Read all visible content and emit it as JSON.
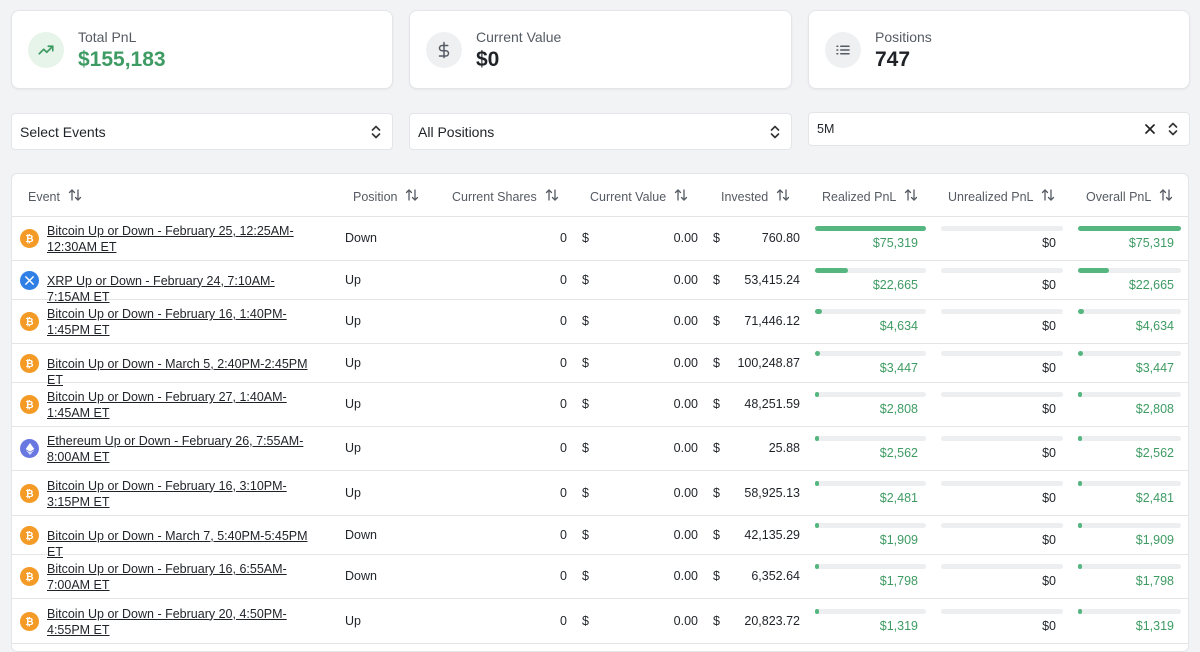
{
  "stats": {
    "total_pnl_label": "Total PnL",
    "total_pnl_value": "$155,183",
    "current_value_label": "Current Value",
    "current_value_value": "$0",
    "positions_label": "Positions",
    "positions_value": "747"
  },
  "filters": {
    "events_select": "Select Events",
    "positions_select": "All Positions",
    "amount_select": "5M"
  },
  "table": {
    "headers": {
      "event": "Event",
      "position": "Position",
      "current_shares": "Current Shares",
      "current_value": "Current Value",
      "invested": "Invested",
      "realized_pnl": "Realized PnL",
      "unrealized_pnl": "Unrealized PnL",
      "overall_pnl": "Overall PnL"
    },
    "currency_symbol": "$",
    "rows": [
      {
        "coin": "bitcoin",
        "event": "Bitcoin Up or Down - February 25, 12:25AM-12:30AM ET",
        "position": "Down",
        "shares": "0",
        "value": "0.00",
        "invested": "760.80",
        "realized": "$75,319",
        "unrealized": "$0",
        "overall": "$75,319",
        "fill": 1.0
      },
      {
        "coin": "xrp",
        "event": "XRP Up or Down - February 24, 7:10AM-7:15AM ET",
        "position": "Up",
        "shares": "0",
        "value": "0.00",
        "invested": "53,415.24",
        "realized": "$22,665",
        "unrealized": "$0",
        "overall": "$22,665",
        "fill": 0.3
      },
      {
        "coin": "bitcoin",
        "event": "Bitcoin Up or Down - February 16, 1:40PM-1:45PM ET",
        "position": "Up",
        "shares": "0",
        "value": "0.00",
        "invested": "71,446.12",
        "realized": "$4,634",
        "unrealized": "$0",
        "overall": "$4,634",
        "fill": 0.062
      },
      {
        "coin": "bitcoin",
        "event": "Bitcoin Up or Down - March 5, 2:40PM-2:45PM ET",
        "position": "Up",
        "shares": "0",
        "value": "0.00",
        "invested": "100,248.87",
        "realized": "$3,447",
        "unrealized": "$0",
        "overall": "$3,447",
        "fill": 0.046
      },
      {
        "coin": "bitcoin",
        "event": "Bitcoin Up or Down - February 27, 1:40AM-1:45AM ET",
        "position": "Up",
        "shares": "0",
        "value": "0.00",
        "invested": "48,251.59",
        "realized": "$2,808",
        "unrealized": "$0",
        "overall": "$2,808",
        "fill": 0.037
      },
      {
        "coin": "ethereum",
        "event": "Ethereum Up or Down - February 26, 7:55AM-8:00AM ET",
        "position": "Up",
        "shares": "0",
        "value": "0.00",
        "invested": "25.88",
        "realized": "$2,562",
        "unrealized": "$0",
        "overall": "$2,562",
        "fill": 0.034
      },
      {
        "coin": "bitcoin",
        "event": "Bitcoin Up or Down - February 16, 3:10PM-3:15PM ET",
        "position": "Up",
        "shares": "0",
        "value": "0.00",
        "invested": "58,925.13",
        "realized": "$2,481",
        "unrealized": "$0",
        "overall": "$2,481",
        "fill": 0.033
      },
      {
        "coin": "bitcoin",
        "event": "Bitcoin Up or Down - March 7, 5:40PM-5:45PM ET",
        "position": "Down",
        "shares": "0",
        "value": "0.00",
        "invested": "42,135.29",
        "realized": "$1,909",
        "unrealized": "$0",
        "overall": "$1,909",
        "fill": 0.025
      },
      {
        "coin": "bitcoin",
        "event": "Bitcoin Up or Down - February 16, 6:55AM-7:00AM ET",
        "position": "Down",
        "shares": "0",
        "value": "0.00",
        "invested": "6,352.64",
        "realized": "$1,798",
        "unrealized": "$0",
        "overall": "$1,798",
        "fill": 0.024
      },
      {
        "coin": "bitcoin",
        "event": "Bitcoin Up or Down - February 20, 4:50PM-4:55PM ET",
        "position": "Up",
        "shares": "0",
        "value": "0.00",
        "invested": "20,823.72",
        "realized": "$1,319",
        "unrealized": "$0",
        "overall": "$1,319",
        "fill": 0.018
      }
    ]
  },
  "colors": {
    "green": "#3e9b63",
    "bar_fill": "#55b67f",
    "bitcoin": "#f39b26",
    "xrp": "#2f7fe5",
    "ethereum": "#6878e0"
  },
  "icons": {
    "total_pnl": "trending-up-icon",
    "current_value": "dollar-icon",
    "positions": "list-icon",
    "sort": "sort-icon",
    "select": "chevron-up-down-icon",
    "clear": "close-icon"
  }
}
